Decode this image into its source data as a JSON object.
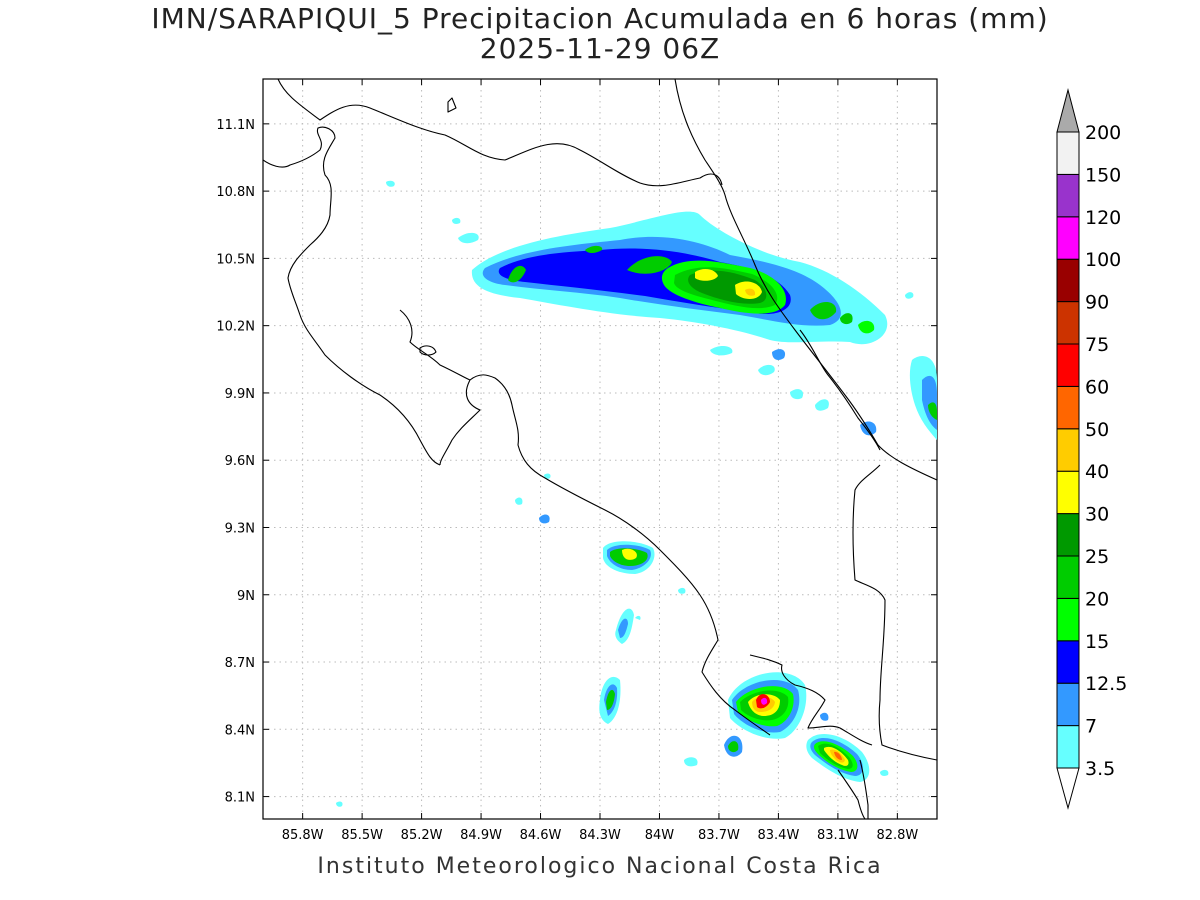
{
  "title": {
    "line1": "IMN/SARAPIQUI_5 Precipitacion Acumulada en 6 horas (mm)",
    "line2": "2025-11-29 06Z"
  },
  "footer": "Instituto Meteorologico Nacional Costa Rica",
  "map": {
    "lon_range": [
      -86.0,
      -82.6
    ],
    "lat_range": [
      8.0,
      11.3
    ],
    "lon_ticks": [
      "85.8W",
      "85.5W",
      "85.2W",
      "84.9W",
      "84.6W",
      "84.3W",
      "84W",
      "83.7W",
      "83.4W",
      "83.1W",
      "82.8W"
    ],
    "lat_ticks": [
      "11.1N",
      "10.8N",
      "10.5N",
      "10.2N",
      "9.9N",
      "9.6N",
      "9.3N",
      "9N",
      "8.7N",
      "8.4N",
      "8.1N"
    ]
  },
  "colorbar": {
    "levels": [
      "3.5",
      "7",
      "12.5",
      "15",
      "20",
      "25",
      "30",
      "40",
      "50",
      "60",
      "75",
      "90",
      "100",
      "120",
      "150",
      "200"
    ],
    "colors": [
      "#66ffff",
      "#3399ff",
      "#0000ff",
      "#00ff00",
      "#00cc00",
      "#009900",
      "#ffff00",
      "#ffcc00",
      "#ff6600",
      "#ff0000",
      "#cc3300",
      "#990000",
      "#ff00ff",
      "#9933cc",
      "#f2f2f2",
      "#aaaaaa"
    ]
  }
}
